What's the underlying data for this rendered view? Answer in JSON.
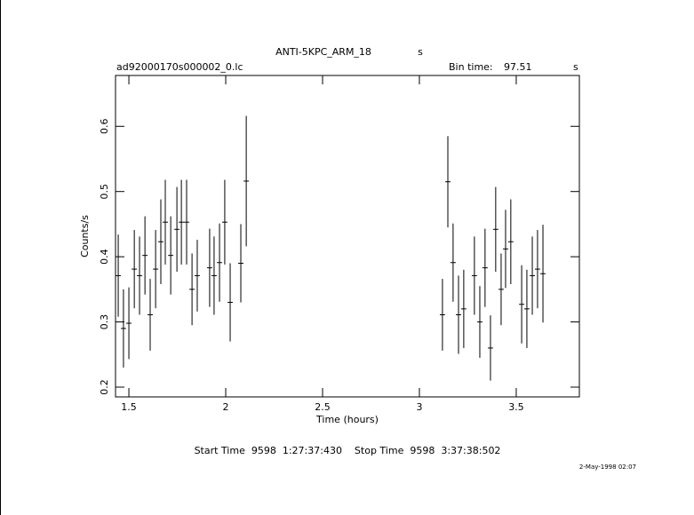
{
  "chart_data": {
    "type": "errorbar",
    "title": "ANTI-5KPC_ARM_18",
    "title_unit": "s",
    "file_name": "ad92000170s000002_0.lc",
    "bin_time_label": "Bin time:",
    "bin_time": "97.51",
    "bin_time_unit": "s",
    "x_label": "Time (hours)",
    "y_label": "Counts/s",
    "footer": "Start Time  9598  1:27:37:430    Stop Time  9598  3:37:38:502",
    "date": "2-May-1998 02:07",
    "xlim": [
      1.431,
      3.826
    ],
    "ylim": [
      0.185,
      0.678
    ],
    "xticks": [
      1.5,
      2,
      2.5,
      3,
      3.5
    ],
    "yticks": [
      0.2,
      0.3,
      0.4,
      0.5,
      0.6
    ],
    "color": "#000000",
    "x": [
      1.445,
      1.472,
      1.5,
      1.528,
      1.555,
      1.583,
      1.61,
      1.638,
      1.665,
      1.688,
      1.716,
      1.748,
      1.771,
      1.798,
      1.826,
      1.853,
      1.917,
      1.94,
      1.968,
      1.995,
      2.023,
      2.078,
      2.106,
      3.119,
      3.147,
      3.174,
      3.202,
      3.229,
      3.284,
      3.312,
      3.339,
      3.367,
      3.394,
      3.422,
      3.445,
      3.472,
      3.528,
      3.555,
      3.583,
      3.61,
      3.638
    ],
    "values": [
      0.371,
      0.29,
      0.298,
      0.381,
      0.371,
      0.402,
      0.311,
      0.381,
      0.423,
      0.453,
      0.402,
      0.442,
      0.453,
      0.453,
      0.35,
      0.371,
      0.383,
      0.371,
      0.391,
      0.453,
      0.33,
      0.39,
      0.516,
      0.311,
      0.515,
      0.391,
      0.311,
      0.32,
      0.371,
      0.3,
      0.383,
      0.26,
      0.442,
      0.35,
      0.412,
      0.423,
      0.327,
      0.32,
      0.371,
      0.381,
      0.374
    ],
    "yerr": [
      0.063,
      0.06,
      0.055,
      0.06,
      0.06,
      0.06,
      0.055,
      0.06,
      0.065,
      0.065,
      0.06,
      0.065,
      0.065,
      0.065,
      0.055,
      0.055,
      0.06,
      0.06,
      0.06,
      0.065,
      0.06,
      0.06,
      0.1,
      0.055,
      0.07,
      0.06,
      0.06,
      0.06,
      0.06,
      0.055,
      0.06,
      0.05,
      0.065,
      0.055,
      0.06,
      0.065,
      0.06,
      0.06,
      0.06,
      0.06,
      0.075
    ],
    "xerr": 0.0135
  }
}
